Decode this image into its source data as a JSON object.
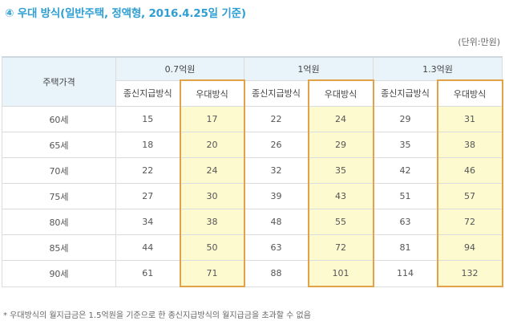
{
  "title": "④ 우대 방식(일반주택, 정액형, 2016.4.25일 기준)",
  "unit": "(단위:만원)",
  "table": {
    "row_header": "주택가격",
    "groups": [
      "0.7억원",
      "1억원",
      "1.3억원"
    ],
    "sub_headers": [
      "종신지급방식",
      "우대방식"
    ],
    "rows": [
      {
        "age": "60세",
        "values": [
          "15",
          "17",
          "22",
          "24",
          "29",
          "31"
        ]
      },
      {
        "age": "65세",
        "values": [
          "18",
          "20",
          "26",
          "29",
          "35",
          "38"
        ]
      },
      {
        "age": "70세",
        "values": [
          "22",
          "24",
          "32",
          "35",
          "42",
          "46"
        ]
      },
      {
        "age": "75세",
        "values": [
          "27",
          "30",
          "39",
          "43",
          "51",
          "57"
        ]
      },
      {
        "age": "80세",
        "values": [
          "34",
          "38",
          "48",
          "55",
          "63",
          "72"
        ]
      },
      {
        "age": "85세",
        "values": [
          "44",
          "50",
          "63",
          "72",
          "81",
          "94"
        ]
      },
      {
        "age": "90세",
        "values": [
          "61",
          "71",
          "88",
          "101",
          "114",
          "132"
        ]
      }
    ]
  },
  "footnote": "* 우대방식의 월지급금은 1.5억원을 기준으로 한 종신지급방식의 월지급금을 초과할 수 없음",
  "colors": {
    "title": "#2f9fd3",
    "highlight_fill": "#fdfad0",
    "highlight_border": "#e2a24a",
    "header_fill": "#e8f3fa"
  }
}
